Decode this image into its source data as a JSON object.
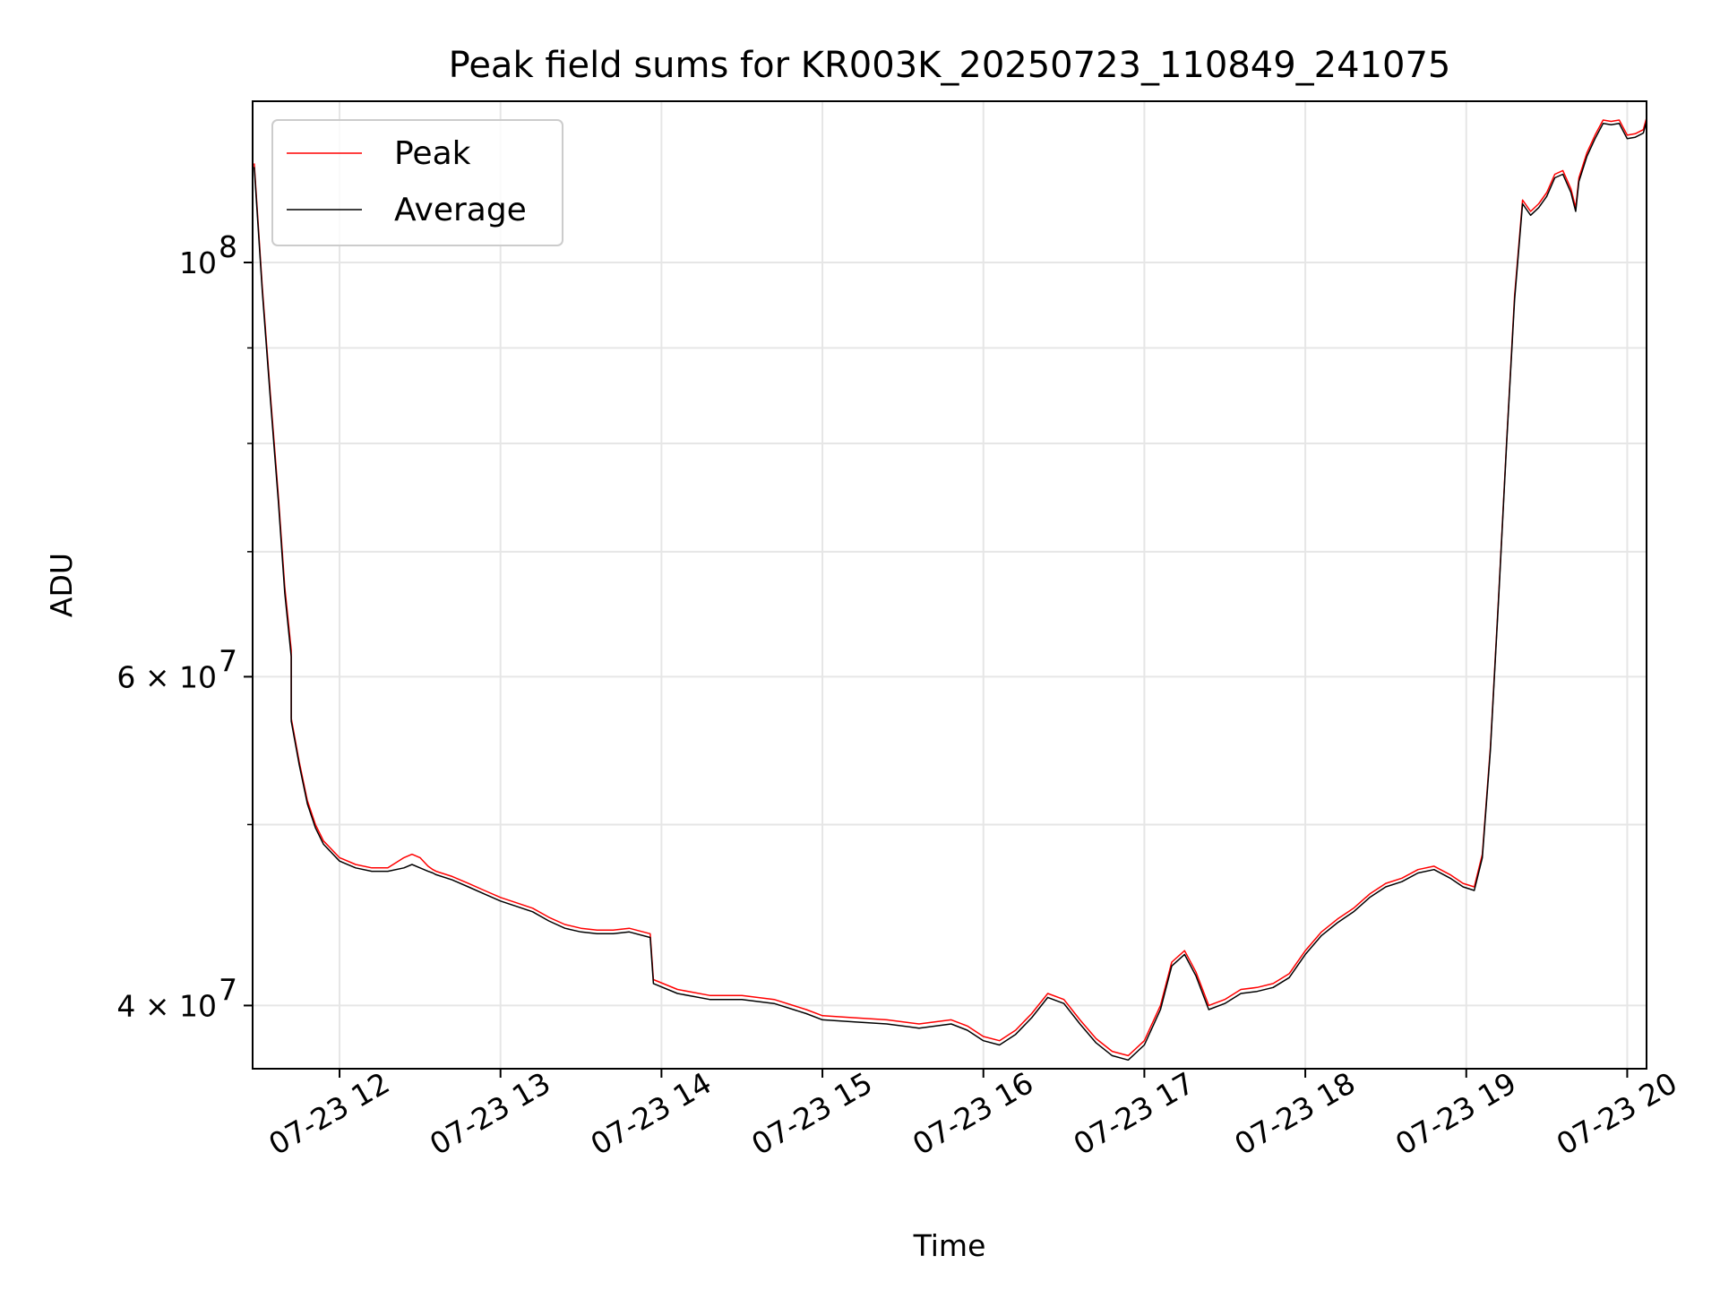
{
  "chart_data": {
    "type": "line",
    "title": "Peak field sums for KR003K_20250723_110849_241075",
    "xlabel": "Time",
    "ylabel": "ADU",
    "yscale": "log",
    "xlim": [
      11.46,
      20.12
    ],
    "ylim": [
      37000000,
      122000000
    ],
    "grid": true,
    "legend": {
      "placement": "upper left",
      "entries": [
        "Peak",
        "Average"
      ]
    },
    "x_ticks": [
      {
        "value": 12,
        "label": "07-23 12"
      },
      {
        "value": 13,
        "label": "07-23 13"
      },
      {
        "value": 14,
        "label": "07-23 14"
      },
      {
        "value": 15,
        "label": "07-23 15"
      },
      {
        "value": 16,
        "label": "07-23 16"
      },
      {
        "value": 17,
        "label": "07-23 17"
      },
      {
        "value": 18,
        "label": "07-23 18"
      },
      {
        "value": 19,
        "label": "07-23 19"
      },
      {
        "value": 20,
        "label": "07-23 20"
      }
    ],
    "y_ticks_major": [
      {
        "value": 40000000,
        "base": "4 × 10",
        "exp": "7"
      },
      {
        "value": 60000000,
        "base": "6 × 10",
        "exp": "7"
      },
      {
        "value": 100000000,
        "base": "10",
        "exp": "8"
      }
    ],
    "y_ticks_minor": [
      50000000,
      70000000,
      80000000,
      90000000
    ],
    "series": [
      {
        "name": "Peak",
        "color": "#ff0000",
        "x": [
          11.47,
          11.52,
          11.57,
          11.62,
          11.66,
          11.7,
          11.7,
          11.75,
          11.8,
          11.85,
          11.9,
          12.0,
          12.1,
          12.2,
          12.3,
          12.4,
          12.45,
          12.5,
          12.55,
          12.58,
          12.6,
          12.7,
          12.8,
          12.9,
          13.0,
          13.1,
          13.2,
          13.3,
          13.4,
          13.5,
          13.6,
          13.7,
          13.8,
          13.93,
          13.95,
          14.1,
          14.3,
          14.5,
          14.7,
          14.9,
          15.0,
          15.2,
          15.4,
          15.6,
          15.8,
          15.9,
          16.0,
          16.1,
          16.2,
          16.3,
          16.4,
          16.5,
          16.6,
          16.7,
          16.8,
          16.9,
          17.0,
          17.1,
          17.17,
          17.25,
          17.32,
          17.4,
          17.5,
          17.6,
          17.7,
          17.8,
          17.9,
          18.0,
          18.1,
          18.2,
          18.3,
          18.4,
          18.5,
          18.6,
          18.7,
          18.8,
          18.9,
          18.98,
          19.05,
          19.1,
          19.15,
          19.2,
          19.25,
          19.3,
          19.35,
          19.4,
          19.45,
          19.5,
          19.55,
          19.6,
          19.65,
          19.68,
          19.7,
          19.75,
          19.8,
          19.85,
          19.9,
          19.95,
          20.0,
          20.05,
          20.1,
          20.12
        ],
        "y": [
          113000000,
          97000000,
          85000000,
          75000000,
          67000000,
          62000000,
          57000000,
          54000000,
          51500000,
          50000000,
          49000000,
          48000000,
          47600000,
          47400000,
          47400000,
          48000000,
          48200000,
          48000000,
          47500000,
          47300000,
          47200000,
          46900000,
          46500000,
          46100000,
          45700000,
          45400000,
          45100000,
          44600000,
          44200000,
          44000000,
          43900000,
          43900000,
          44000000,
          43700000,
          41300000,
          40800000,
          40500000,
          40500000,
          40300000,
          39800000,
          39500000,
          39400000,
          39300000,
          39100000,
          39300000,
          39000000,
          38500000,
          38300000,
          38800000,
          39600000,
          40600000,
          40300000,
          39300000,
          38400000,
          37800000,
          37600000,
          38300000,
          40000000,
          42200000,
          42800000,
          41700000,
          40000000,
          40300000,
          40800000,
          40900000,
          41100000,
          41600000,
          42800000,
          43800000,
          44500000,
          45100000,
          45900000,
          46500000,
          46800000,
          47300000,
          47500000,
          47000000,
          46500000,
          46300000,
          48200000,
          55000000,
          66000000,
          80000000,
          96000000,
          108000000,
          106500000,
          107500000,
          109000000,
          111500000,
          112000000,
          109500000,
          107000000,
          111000000,
          114500000,
          117000000,
          119200000,
          119000000,
          119200000,
          117000000,
          117200000,
          117800000,
          119500000
        ]
      },
      {
        "name": "Average",
        "color": "#000000",
        "x": [
          11.47,
          11.52,
          11.57,
          11.62,
          11.66,
          11.7,
          11.7,
          11.75,
          11.8,
          11.85,
          11.9,
          12.0,
          12.1,
          12.2,
          12.3,
          12.4,
          12.45,
          12.5,
          12.55,
          12.58,
          12.6,
          12.7,
          12.8,
          12.9,
          13.0,
          13.1,
          13.2,
          13.3,
          13.4,
          13.5,
          13.6,
          13.7,
          13.8,
          13.93,
          13.95,
          14.1,
          14.3,
          14.5,
          14.7,
          14.9,
          15.0,
          15.2,
          15.4,
          15.6,
          15.8,
          15.9,
          16.0,
          16.1,
          16.2,
          16.3,
          16.4,
          16.5,
          16.6,
          16.7,
          16.8,
          16.9,
          17.0,
          17.1,
          17.17,
          17.25,
          17.32,
          17.4,
          17.5,
          17.6,
          17.7,
          17.8,
          17.9,
          18.0,
          18.1,
          18.2,
          18.3,
          18.4,
          18.5,
          18.6,
          18.7,
          18.8,
          18.9,
          18.98,
          19.05,
          19.1,
          19.15,
          19.2,
          19.25,
          19.3,
          19.35,
          19.4,
          19.45,
          19.5,
          19.55,
          19.6,
          19.65,
          19.68,
          19.7,
          19.75,
          19.8,
          19.85,
          19.9,
          19.95,
          20.0,
          20.05,
          20.1,
          20.12
        ],
        "y": [
          112500000,
          96500000,
          84500000,
          74500000,
          66500000,
          61500000,
          56800000,
          53800000,
          51300000,
          49800000,
          48800000,
          47800000,
          47400000,
          47200000,
          47200000,
          47400000,
          47600000,
          47400000,
          47200000,
          47100000,
          47000000,
          46700000,
          46300000,
          45900000,
          45500000,
          45200000,
          44900000,
          44400000,
          44000000,
          43800000,
          43700000,
          43700000,
          43800000,
          43500000,
          41100000,
          40600000,
          40300000,
          40300000,
          40100000,
          39600000,
          39300000,
          39200000,
          39100000,
          38900000,
          39100000,
          38800000,
          38300000,
          38100000,
          38600000,
          39400000,
          40400000,
          40100000,
          39100000,
          38200000,
          37600000,
          37400000,
          38100000,
          39800000,
          42000000,
          42600000,
          41500000,
          39800000,
          40100000,
          40600000,
          40700000,
          40900000,
          41400000,
          42600000,
          43600000,
          44300000,
          44900000,
          45700000,
          46300000,
          46600000,
          47100000,
          47300000,
          46800000,
          46300000,
          46100000,
          48000000,
          54800000,
          65800000,
          79800000,
          95500000,
          107500000,
          106000000,
          107000000,
          108500000,
          111000000,
          111500000,
          109000000,
          106500000,
          110500000,
          114000000,
          116500000,
          118700000,
          118500000,
          118700000,
          116500000,
          116700000,
          117300000,
          119000000
        ]
      }
    ]
  }
}
